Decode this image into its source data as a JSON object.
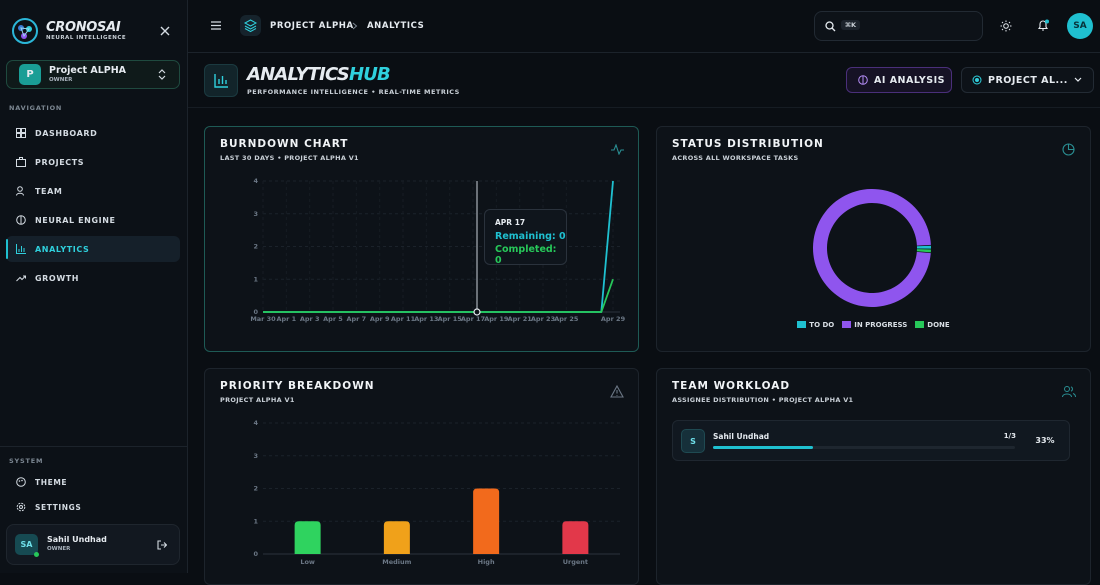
{
  "sidebar": {
    "brand": "CRONOS",
    "brand_accent": "AI",
    "tagline": "NEURAL INTELLIGENCE",
    "project": {
      "initial": "P",
      "name": "Project ALPHA",
      "role": "OWNER"
    },
    "nav_heading": "NAVIGATION",
    "nav": [
      "DASHBOARD",
      "PROJECTS",
      "TEAM",
      "NEURAL ENGINE",
      "ANALYTICS",
      "GROWTH"
    ],
    "system_heading": "SYSTEM",
    "system": [
      "THEME",
      "SETTINGS"
    ],
    "user": {
      "initials": "SA",
      "name": "Sahil Undhad",
      "role": "OWNER"
    }
  },
  "header": {
    "breadcrumb": [
      "PROJECT ALPHA",
      "ANALYTICS"
    ],
    "search_hint": "⌘K",
    "avatar": "SA"
  },
  "hub": {
    "title": "ANALYTICS",
    "title_accent": "HUB",
    "subtitle": "PERFORMANCE INTELLIGENCE • REAL-TIME METRICS",
    "ai_button": "AI ANALYSIS",
    "project_button": "PROJECT AL..."
  },
  "chart_data": [
    {
      "type": "line",
      "title": "BURNDOWN CHART",
      "subtitle": "LAST 30 DAYS • PROJECT ALPHA V1",
      "categories": [
        "Mar 30",
        null,
        "Apr 1",
        null,
        "Apr 3",
        null,
        "Apr 5",
        null,
        "Apr 7",
        null,
        "Apr 9",
        null,
        "Apr 11",
        null,
        "Apr 13",
        null,
        "Apr 15",
        null,
        "Apr 17",
        null,
        "Apr 19",
        null,
        "Apr 21",
        null,
        "Apr 23",
        null,
        "Apr 25",
        null,
        null,
        null,
        "Apr 29"
      ],
      "series": [
        {
          "color": "#1fc0d0",
          "values": [
            0,
            0,
            0,
            0,
            0,
            0,
            0,
            0,
            0,
            0,
            0,
            0,
            0,
            0,
            0,
            0,
            0,
            0,
            0,
            0,
            0,
            0,
            0,
            0,
            0,
            0,
            0,
            0,
            0,
            0,
            4
          ]
        },
        {
          "color": "#27c85a",
          "values": [
            0,
            0,
            0,
            0,
            0,
            0,
            0,
            0,
            0,
            0,
            0,
            0,
            0,
            0,
            0,
            0,
            0,
            0,
            0,
            0,
            0,
            0,
            0,
            0,
            0,
            0,
            0,
            0,
            0,
            0,
            1
          ]
        }
      ],
      "ylim": [
        0,
        4
      ],
      "yticks": [
        0,
        1,
        2,
        3,
        4
      ],
      "grid": true,
      "tooltip": {
        "title": "APR 17",
        "rows": [
          "Remaining: 0",
          "Completed: 0"
        ]
      }
    },
    {
      "type": "pie",
      "title": "STATUS DISTRIBUTION",
      "subtitle": "ACROSS ALL WORKSPACE TASKS",
      "categories": [
        "TO DO",
        "IN PROGRESS",
        "DONE"
      ],
      "values": [
        1,
        98,
        1
      ],
      "colors": [
        "#1fc0d0",
        "#8f55ee",
        "#27c85a"
      ]
    },
    {
      "type": "bar",
      "title": "PRIORITY BREAKDOWN",
      "subtitle": "PROJECT ALPHA V1",
      "categories": [
        "Low",
        "Medium",
        "High",
        "Urgent"
      ],
      "values": [
        1,
        1,
        2,
        1
      ],
      "colors": [
        "#2fd35f",
        "#f0a11a",
        "#f26a1c",
        "#e2384a"
      ],
      "ylim": [
        0,
        4
      ],
      "yticks": [
        0,
        1,
        2,
        3,
        4
      ],
      "grid": true
    }
  ],
  "workload": {
    "title": "TEAM WORKLOAD",
    "subtitle": "ASSIGNEE DISTRIBUTION • PROJECT ALPHA V1",
    "members": [
      {
        "initial": "S",
        "name": "Sahil Undhad",
        "ratio": "1/3",
        "percent": {
          "value": 33,
          "label": "33%"
        }
      }
    ]
  }
}
